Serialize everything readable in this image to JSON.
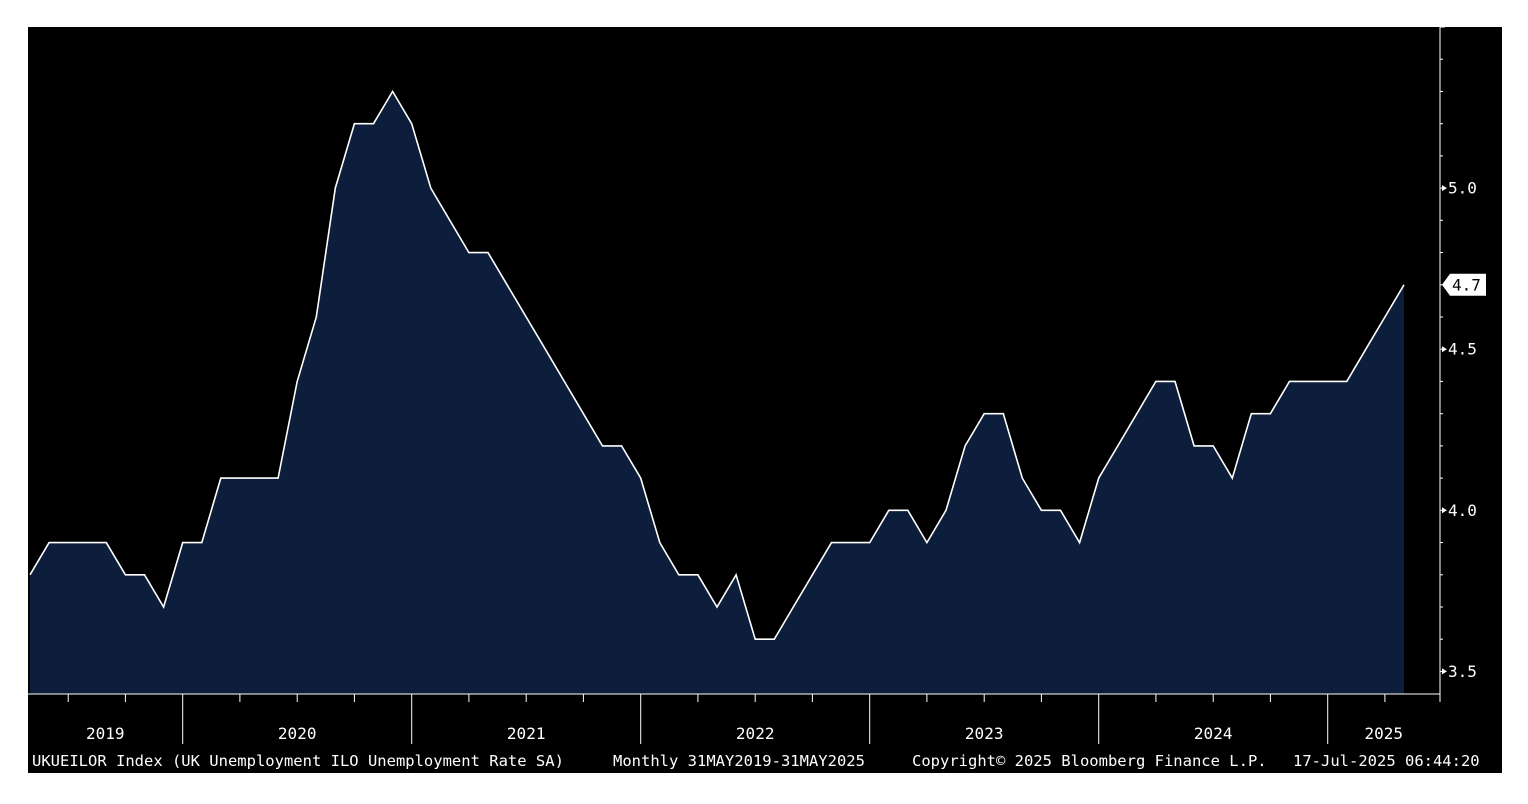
{
  "chart_data": {
    "type": "area",
    "frequency": "Monthly",
    "x": [
      "2019-05",
      "2019-06",
      "2019-07",
      "2019-08",
      "2019-09",
      "2019-10",
      "2019-11",
      "2019-12",
      "2020-01",
      "2020-02",
      "2020-03",
      "2020-04",
      "2020-05",
      "2020-06",
      "2020-07",
      "2020-08",
      "2020-09",
      "2020-10",
      "2020-11",
      "2020-12",
      "2021-01",
      "2021-02",
      "2021-03",
      "2021-04",
      "2021-05",
      "2021-06",
      "2021-07",
      "2021-08",
      "2021-09",
      "2021-10",
      "2021-11",
      "2021-12",
      "2022-01",
      "2022-02",
      "2022-03",
      "2022-04",
      "2022-05",
      "2022-06",
      "2022-07",
      "2022-08",
      "2022-09",
      "2022-10",
      "2022-11",
      "2022-12",
      "2023-01",
      "2023-02",
      "2023-03",
      "2023-04",
      "2023-05",
      "2023-06",
      "2023-07",
      "2023-08",
      "2023-09",
      "2023-10",
      "2023-11",
      "2023-12",
      "2024-01",
      "2024-02",
      "2024-03",
      "2024-04",
      "2024-05",
      "2024-06",
      "2024-07",
      "2024-08",
      "2024-09",
      "2024-10",
      "2024-11",
      "2024-12",
      "2025-01",
      "2025-02",
      "2025-03",
      "2025-04",
      "2025-05"
    ],
    "series": [
      {
        "values": [
          3.8,
          3.9,
          3.9,
          3.9,
          3.9,
          3.8,
          3.8,
          3.7,
          3.9,
          3.9,
          4.1,
          4.1,
          4.1,
          4.1,
          4.4,
          4.6,
          5.0,
          5.2,
          5.2,
          5.3,
          5.2,
          5.0,
          4.9,
          4.8,
          4.8,
          4.7,
          4.6,
          4.5,
          4.4,
          4.3,
          4.2,
          4.2,
          4.1,
          3.9,
          3.8,
          3.8,
          3.7,
          3.8,
          3.6,
          3.6,
          3.7,
          3.8,
          3.9,
          3.9,
          3.9,
          4.0,
          4.0,
          3.9,
          4.0,
          4.2,
          4.3,
          4.3,
          4.1,
          4.0,
          4.0,
          3.9,
          4.1,
          4.2,
          4.3,
          4.4,
          4.4,
          4.2,
          4.2,
          4.1,
          4.3,
          4.3,
          4.4,
          4.4,
          4.4,
          4.4,
          4.5,
          4.6,
          4.7
        ]
      }
    ],
    "ylim": [
      3.43,
      5.5
    ],
    "y_ticks": [
      "3.5",
      "4.0",
      "4.5",
      "5.0"
    ],
    "year_labels": [
      "2019",
      "2020",
      "2021",
      "2022",
      "2023",
      "2024",
      "2025"
    ],
    "last_value_label": "4.7",
    "grid": false,
    "legend": "none",
    "colors": {
      "background": "#000000",
      "fill": "#0c1e3c",
      "line": "#ffffff",
      "page": "#ffffff"
    }
  },
  "footer": {
    "index": "UKUEILOR Index (UK Unemployment ILO Unemployment Rate SA)",
    "range": "Monthly 31MAY2019-31MAY2025",
    "copyright": "Copyright© 2025 Bloomberg Finance L.P.",
    "timestamp": "17-Jul-2025 06:44:20"
  }
}
